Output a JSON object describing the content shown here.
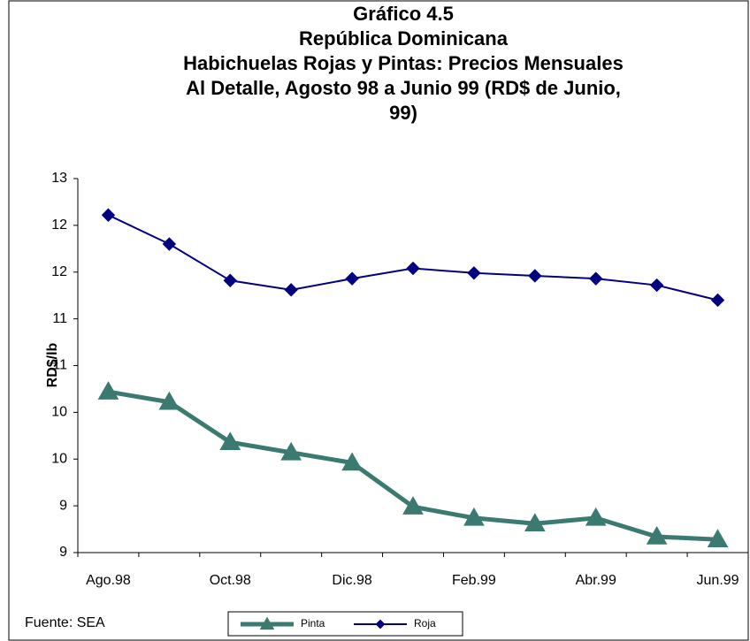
{
  "chart_data": {
    "type": "line",
    "title": [
      "Gráfico 4.5",
      "República Dominicana",
      "Habichuelas Rojas y Pintas: Precios Mensuales",
      "Al Detalle, Agosto 98 a Junio 99 (RD$ de Junio,",
      "99)"
    ],
    "y_label": "RD$/lb",
    "source": "Fuente: SEA",
    "categories": [
      "Ago.98",
      null,
      "Oct.98",
      null,
      "Dic.98",
      null,
      "Feb.99",
      null,
      "Abr.99",
      null,
      "Jun.99"
    ],
    "series": [
      {
        "name": "Pinta",
        "color": "#3a7a70",
        "marker": "triangle",
        "values": [
          10.32,
          10.21,
          9.78,
          9.67,
          9.56,
          9.09,
          8.97,
          8.91,
          8.97,
          8.77,
          8.74
        ]
      },
      {
        "name": "Roja",
        "color": "#000080",
        "marker": "diamond",
        "values": [
          12.21,
          11.9,
          11.51,
          11.41,
          11.53,
          11.64,
          11.59,
          11.56,
          11.53,
          11.46,
          11.3
        ]
      }
    ],
    "ylim": [
      8.6,
      12.6
    ],
    "yticks": [
      {
        "value": 12.6,
        "label": "13"
      },
      {
        "value": 12.1,
        "label": "12"
      },
      {
        "value": 11.6,
        "label": "12"
      },
      {
        "value": 11.1,
        "label": "11"
      },
      {
        "value": 10.6,
        "label": "11"
      },
      {
        "value": 10.1,
        "label": "10"
      },
      {
        "value": 9.6,
        "label": "10"
      },
      {
        "value": 9.1,
        "label": "9"
      },
      {
        "value": 8.6,
        "label": "9"
      }
    ],
    "grid": false
  }
}
